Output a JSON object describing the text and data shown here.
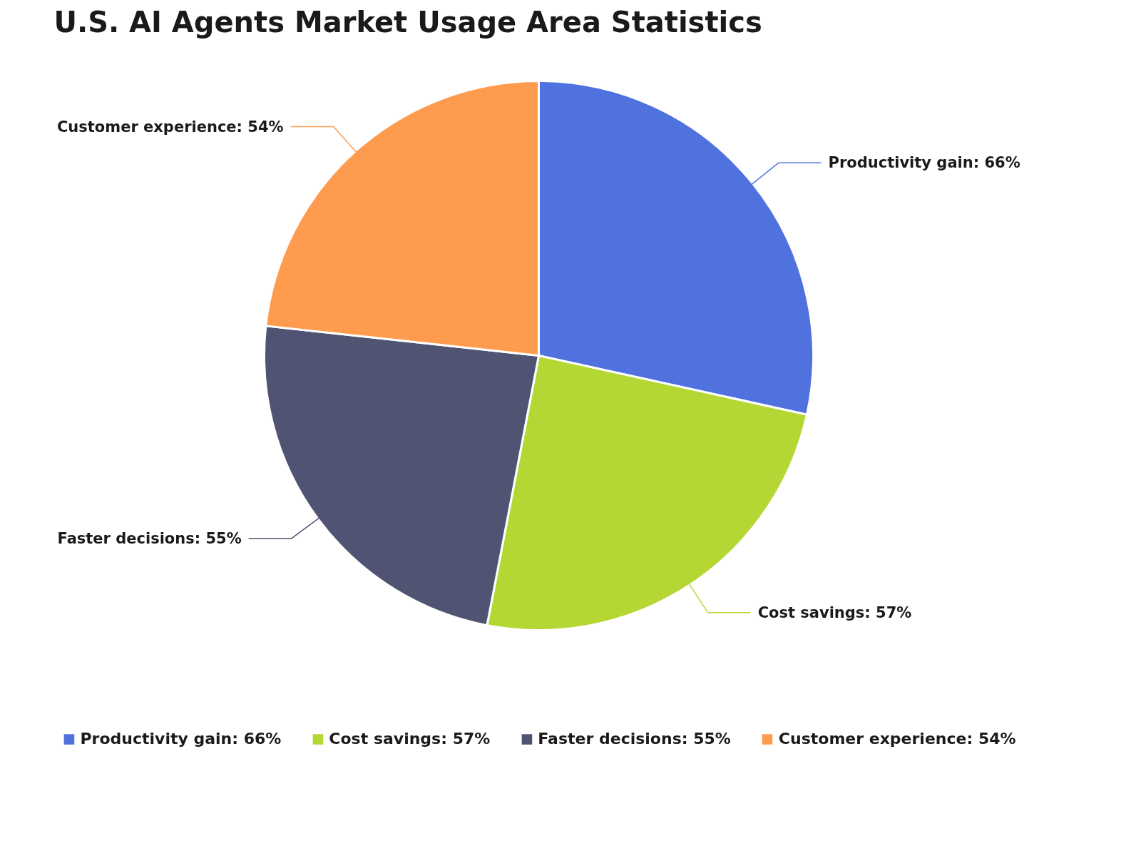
{
  "chart_data": {
    "type": "pie",
    "title": "U.S. AI Agents Market Usage Area Statistics",
    "categories": [
      "Productivity gain",
      "Cost savings",
      "Faster decisions",
      "Customer experience"
    ],
    "values": [
      66,
      57,
      55,
      54
    ],
    "value_labels": [
      "66%",
      "57%",
      "55%",
      "54%"
    ],
    "colors": [
      "#5072df",
      "#b5d733",
      "#505372",
      "#ff9b4e"
    ],
    "legend": "bottom"
  }
}
